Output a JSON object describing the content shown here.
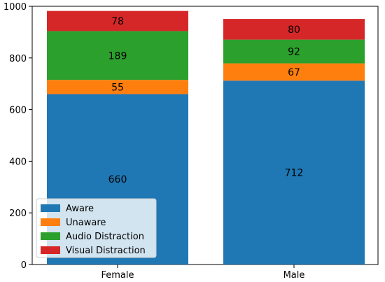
{
  "chart_data": {
    "type": "bar",
    "stacked": true,
    "categories": [
      "Female",
      "Male"
    ],
    "series": [
      {
        "name": "Aware",
        "values": [
          660,
          712
        ],
        "color": "#1f77b4"
      },
      {
        "name": "Unaware",
        "values": [
          55,
          67
        ],
        "color": "#ff7f0e"
      },
      {
        "name": "Audio Distraction",
        "values": [
          189,
          92
        ],
        "color": "#2ca02c"
      },
      {
        "name": "Visual Distraction",
        "values": [
          78,
          80
        ],
        "color": "#d62728"
      }
    ],
    "title": "",
    "xlabel": "",
    "ylabel": "",
    "ylim": [
      0,
      1000
    ],
    "yticks": [
      0,
      200,
      400,
      600,
      800,
      1000
    ],
    "grid": false,
    "legend_position": "lower-left"
  }
}
